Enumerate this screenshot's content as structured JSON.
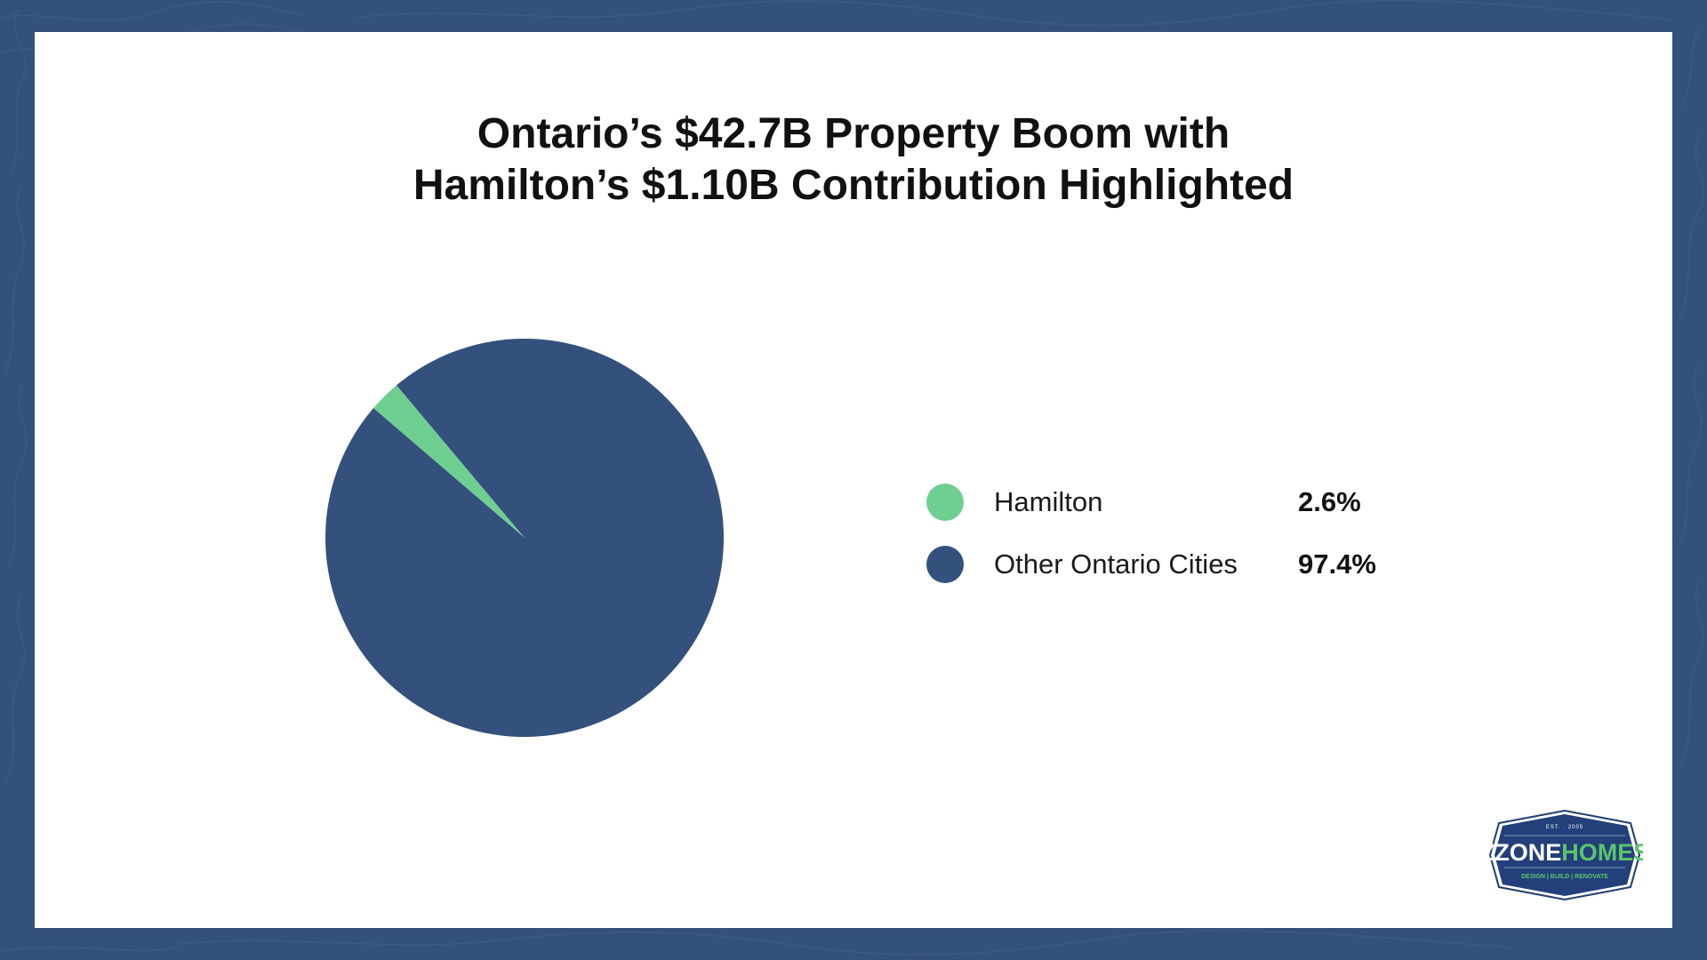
{
  "chart_data": {
    "type": "pie",
    "title": "Ontario’s $42.7B Property Boom with Hamilton’s $1.10B Contribution Highlighted",
    "title_lines": [
      "Ontario’s $42.7B Property Boom with",
      "Hamilton’s $1.10B Contribution Highlighted"
    ],
    "slices": [
      {
        "label": "Hamilton",
        "value": 2.6,
        "display": "2.6%",
        "color": "#6fcf91"
      },
      {
        "label": "Other Ontario Cities",
        "value": 97.4,
        "display": "97.4%",
        "color": "#34507d"
      }
    ],
    "legend_position": "right"
  },
  "logo": {
    "est": "EST. · 2005",
    "brand_part1": "ZZONE",
    "brand_part2": "HOMES",
    "tagline": "DESIGN | BUILD | RENOVATE"
  },
  "colors": {
    "border": "#34507d",
    "hamilton": "#6fcf91",
    "other": "#34507d",
    "logo_green": "#5cc46b"
  }
}
